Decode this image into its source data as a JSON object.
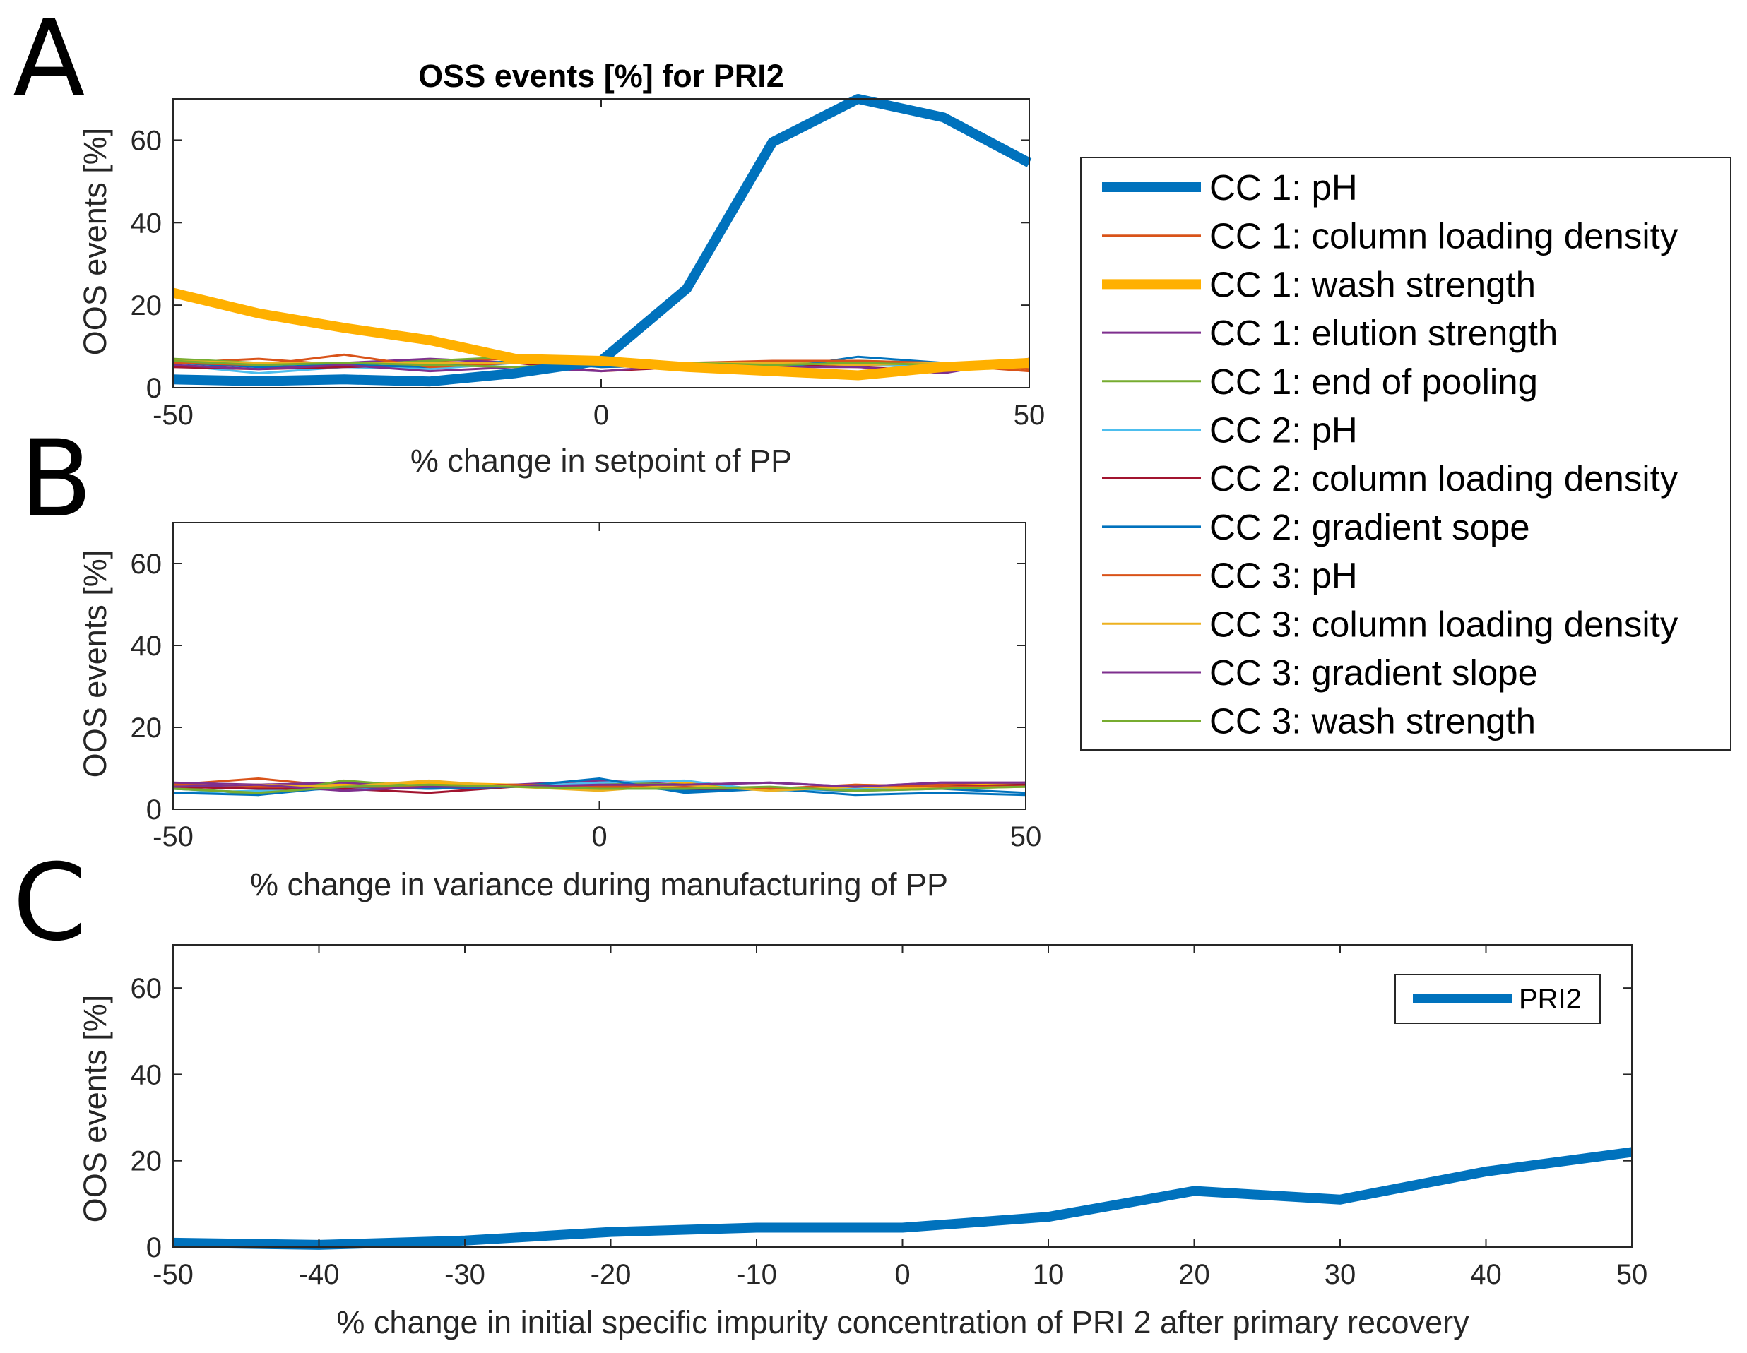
{
  "panel_letters": [
    "A",
    "B",
    "C"
  ],
  "colors": {
    "blue": "#0072BD",
    "orange": "#D95319",
    "yellow": "#EDB120",
    "purple": "#7E2F8E",
    "green": "#77AC30",
    "cyan": "#4DBEEE",
    "red": "#A2142F",
    "wash": "#FFB000"
  },
  "legend_title_free": true,
  "chart_data": [
    {
      "id": "A",
      "type": "line",
      "title": "OSS events [%] for PRI2",
      "xlabel": "% change in setpoint of PP",
      "ylabel": "OOS events [%]",
      "xlim": [
        -50,
        50
      ],
      "ylim": [
        0,
        70
      ],
      "xticks": [
        -50,
        0,
        50
      ],
      "yticks": [
        0,
        20,
        40,
        60
      ],
      "x": [
        -50,
        -40,
        -30,
        -20,
        -10,
        0,
        10,
        20,
        30,
        40,
        50
      ],
      "series": [
        {
          "name": "CC 1: pH",
          "color": "#0072BD",
          "width": 14,
          "values": [
            2,
            1.6,
            2,
            1.5,
            3.5,
            6.5,
            24,
            59.5,
            70,
            65.5,
            54.5
          ]
        },
        {
          "name": "CC 1: column loading density",
          "color": "#D95319",
          "width": 3,
          "values": [
            6,
            7,
            5.5,
            6.5,
            7,
            5,
            5.5,
            5,
            6,
            5.5,
            4
          ]
        },
        {
          "name": "CC 1: wash strength",
          "color": "#FFB000",
          "width": 14,
          "values": [
            23,
            18,
            14.5,
            11.5,
            7,
            6.5,
            5,
            4,
            3,
            5,
            6
          ]
        },
        {
          "name": "CC 1: elution strength",
          "color": "#7E2F8E",
          "width": 3,
          "values": [
            6.5,
            5.5,
            6,
            7,
            6,
            5.5,
            6,
            5,
            6.5,
            4.5,
            6.5
          ]
        },
        {
          "name": "CC 1: end of pooling",
          "color": "#77AC30",
          "width": 3,
          "values": [
            7,
            6,
            5.5,
            6.5,
            7.5,
            5.5,
            5,
            6,
            6.5,
            6,
            5.5
          ]
        },
        {
          "name": "CC 2: pH",
          "color": "#4DBEEE",
          "width": 3,
          "values": [
            5.5,
            3.5,
            5,
            4.5,
            6,
            6,
            5,
            6,
            5.5,
            5,
            5
          ]
        },
        {
          "name": "CC 2: column loading density",
          "color": "#A2142F",
          "width": 3,
          "values": [
            5,
            4.5,
            5,
            5.5,
            6,
            4,
            5,
            5.5,
            5,
            4,
            7
          ]
        },
        {
          "name": "CC 2: gradient sope",
          "color": "#0072BD",
          "width": 3,
          "values": [
            6,
            5,
            5.5,
            5,
            6.5,
            5,
            5.5,
            4.5,
            7.5,
            6,
            5.5
          ]
        },
        {
          "name": "CC 3: pH",
          "color": "#D95319",
          "width": 3,
          "values": [
            6,
            5.5,
            8,
            5,
            6,
            5.5,
            6,
            6.5,
            6.5,
            6,
            4.5
          ]
        },
        {
          "name": "CC 3: column loading density",
          "color": "#EDB120",
          "width": 3,
          "values": [
            6.5,
            6,
            6,
            6,
            6,
            6.5,
            6,
            6,
            5.5,
            6,
            5
          ]
        },
        {
          "name": "CC 3: gradient slope",
          "color": "#7E2F8E",
          "width": 3,
          "values": [
            5.5,
            4.5,
            5.5,
            4,
            5,
            4,
            5.5,
            5,
            5,
            3.5,
            7
          ]
        },
        {
          "name": "CC 3: wash strength",
          "color": "#77AC30",
          "width": 3,
          "values": [
            6.5,
            5.5,
            6,
            5.5,
            5,
            6,
            6,
            5.5,
            6,
            5.5,
            6
          ]
        }
      ]
    },
    {
      "id": "B",
      "type": "line",
      "title": "",
      "xlabel": "% change in variance during manufacturing of PP",
      "ylabel": "OOS events [%]",
      "xlim": [
        -50,
        50
      ],
      "ylim": [
        0,
        70
      ],
      "xticks": [
        -50,
        0,
        50
      ],
      "yticks": [
        0,
        20,
        40,
        60
      ],
      "x": [
        -50,
        -40,
        -30,
        -20,
        -10,
        0,
        10,
        20,
        30,
        40,
        50
      ],
      "series": [
        {
          "name": "CC 1: pH",
          "color": "#0072BD",
          "width": 3,
          "values": [
            5,
            4,
            6,
            5,
            5.5,
            6,
            4.5,
            5,
            4.5,
            5,
            4
          ]
        },
        {
          "name": "CC 1: column loading density",
          "color": "#D95319",
          "width": 3,
          "values": [
            6,
            7.5,
            5.5,
            6,
            6,
            5.5,
            5.5,
            5,
            5.5,
            6,
            6.5
          ]
        },
        {
          "name": "CC 1: wash strength",
          "color": "#FFB000",
          "width": 3,
          "values": [
            6,
            5.5,
            6,
            6.5,
            6,
            5,
            6.5,
            4.5,
            6,
            5.5,
            6.5
          ]
        },
        {
          "name": "CC 1: elution strength",
          "color": "#7E2F8E",
          "width": 3,
          "values": [
            6.5,
            6,
            6.5,
            5.5,
            6,
            7,
            6,
            6.5,
            5.5,
            6.5,
            6.5
          ]
        },
        {
          "name": "CC 1: end of pooling",
          "color": "#77AC30",
          "width": 3,
          "values": [
            5.5,
            3.5,
            7,
            5.5,
            5.5,
            6.5,
            6,
            5,
            5.5,
            5.5,
            6
          ]
        },
        {
          "name": "CC 2: pH",
          "color": "#4DBEEE",
          "width": 3,
          "values": [
            4,
            4.5,
            5,
            5.5,
            5.5,
            6.5,
            7,
            4.5,
            5,
            5.5,
            5.5
          ]
        },
        {
          "name": "CC 2: column loading density",
          "color": "#A2142F",
          "width": 3,
          "values": [
            5.5,
            5,
            5,
            4,
            5.5,
            5.5,
            5,
            5,
            5.5,
            5.5,
            6
          ]
        },
        {
          "name": "CC 2: gradient sope",
          "color": "#0072BD",
          "width": 3,
          "values": [
            4,
            3.5,
            5.5,
            5,
            5.5,
            7.5,
            4,
            5,
            3.5,
            4,
            3.5
          ]
        },
        {
          "name": "CC 3: pH",
          "color": "#D95319",
          "width": 3,
          "values": [
            6,
            5.5,
            5.5,
            5.5,
            6,
            5.5,
            5.5,
            5,
            6,
            5.5,
            5.5
          ]
        },
        {
          "name": "CC 3: column loading density",
          "color": "#EDB120",
          "width": 3,
          "values": [
            5.5,
            6,
            5.5,
            7,
            5.5,
            4.5,
            6,
            4.5,
            5.5,
            5,
            5.5
          ]
        },
        {
          "name": "CC 3: gradient slope",
          "color": "#7E2F8E",
          "width": 3,
          "values": [
            5.5,
            6,
            4.5,
            5.5,
            5.5,
            6,
            6,
            6.5,
            5.5,
            6.5,
            6.5
          ]
        },
        {
          "name": "CC 3: wash strength",
          "color": "#77AC30",
          "width": 3,
          "values": [
            5,
            4,
            5.5,
            6,
            5.5,
            5,
            5,
            5.5,
            4.5,
            5,
            5.5
          ]
        }
      ]
    },
    {
      "id": "C",
      "type": "line",
      "title": "",
      "xlabel": "% change in initial specific impurity concentration of PRI 2 after primary recovery",
      "ylabel": "OOS events [%]",
      "xlim": [
        -50,
        50
      ],
      "ylim": [
        0,
        70
      ],
      "xticks": [
        -50,
        -40,
        -30,
        -20,
        -10,
        0,
        10,
        20,
        30,
        40,
        50
      ],
      "yticks": [
        0,
        20,
        40,
        60
      ],
      "x": [
        -50,
        -40,
        -30,
        -20,
        -10,
        0,
        10,
        20,
        30,
        40,
        50
      ],
      "legend_position": "top-right",
      "series": [
        {
          "name": "PRI2",
          "color": "#0072BD",
          "width": 14,
          "values": [
            1,
            0.5,
            1.5,
            3.5,
            4.5,
            4.5,
            7,
            13,
            11,
            17.5,
            22
          ]
        }
      ]
    }
  ]
}
